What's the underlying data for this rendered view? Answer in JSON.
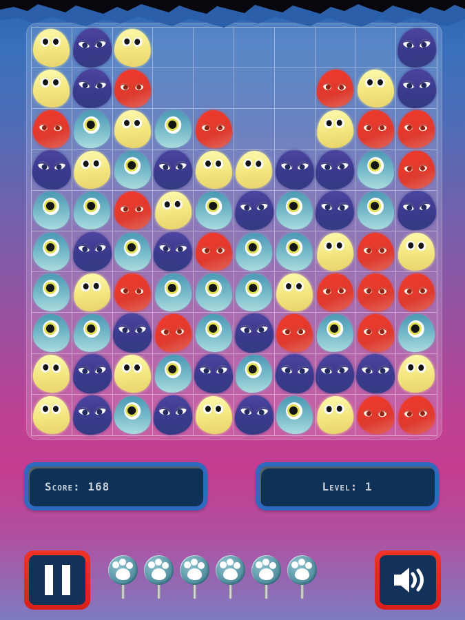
{
  "hud": {
    "score_text": "Score: 168",
    "level_text": "Level: 1"
  },
  "board": {
    "rows": 10,
    "cols": 10,
    "grid": [
      [
        "yellow",
        "navy",
        "yellow",
        null,
        null,
        null,
        null,
        null,
        null,
        "navy"
      ],
      [
        "yellow",
        "navy",
        "red",
        null,
        null,
        null,
        null,
        "red",
        "yellow",
        "navy"
      ],
      [
        "red",
        "cyan",
        "yellow",
        "cyan",
        "red",
        null,
        null,
        "yellow",
        "red",
        "red"
      ],
      [
        "navy",
        "yellow",
        "cyan",
        "navy",
        "yellow",
        "yellow",
        "navy",
        "navy",
        "cyan",
        "red"
      ],
      [
        "cyan",
        "cyan",
        "red",
        "yellow",
        "cyan",
        "navy",
        "cyan",
        "navy",
        "cyan",
        "navy"
      ],
      [
        "cyan",
        "navy",
        "cyan",
        "navy",
        "red",
        "cyan",
        "cyan",
        "yellow",
        "red",
        "yellow"
      ],
      [
        "cyan",
        "yellow",
        "red",
        "cyan",
        "cyan",
        "cyan",
        "yellow",
        "red",
        "red",
        "red"
      ],
      [
        "cyan",
        "cyan",
        "navy",
        "red",
        "cyan",
        "navy",
        "red",
        "cyan",
        "red",
        "cyan"
      ],
      [
        "yellow",
        "navy",
        "yellow",
        "cyan",
        "navy",
        "cyan",
        "navy",
        "navy",
        "navy",
        "yellow"
      ],
      [
        "yellow",
        "navy",
        "cyan",
        "navy",
        "yellow",
        "navy",
        "cyan",
        "yellow",
        "red",
        "red"
      ]
    ],
    "blob_types": [
      "yellow",
      "navy",
      "red",
      "cyan"
    ]
  },
  "controls": {
    "pause_icon": "pause-icon",
    "sound_icon": "speaker-on-icon",
    "lollipops": {
      "count": 6,
      "icon": "paw-lollipop-icon"
    }
  },
  "colors": {
    "background_top": "#2b66b2",
    "background_magenta": "#c43e91",
    "background_bottom": "#7e7bc1",
    "board_overlay": "rgba(255,255,255,0.16)",
    "panel_border": "#2e6abf",
    "panel_fill": "#0e3155",
    "hud_text": "#c9d2dc",
    "button_red": "#e3241d",
    "button_inner": "#13325a",
    "blob_yellow": "#f3e67f",
    "blob_navy": "#3c3a8e",
    "blob_red": "#e0392d",
    "blob_cyan": "#74b8c8",
    "lollipop_teal": "#5d98a8"
  }
}
